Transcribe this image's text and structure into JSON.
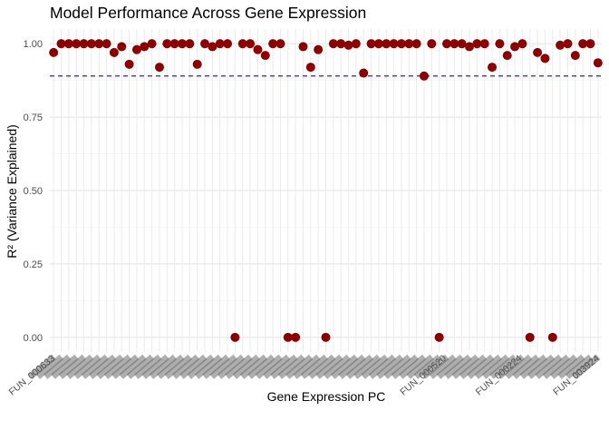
{
  "chart_data": {
    "type": "scatter",
    "title": "Model Performance Across Gene Expression",
    "xlabel": "Gene Expression PC",
    "ylabel": "R² (Variance Explained)",
    "ylim": [
      -0.05,
      1.05
    ],
    "yticks": [
      0.0,
      0.25,
      0.5,
      0.75,
      1.0
    ],
    "ytick_labels": [
      "0.00",
      "0.25",
      "0.50",
      "0.75",
      "1.00"
    ],
    "x_tick_labels_legible": [
      "FUN_000633",
      "FUN_000520",
      "FUN_000224",
      "FUN_003924"
    ],
    "reference_line": {
      "value": 0.89,
      "style": "dashed",
      "color": "#2222dd"
    },
    "marker_color": "#8b0000",
    "grid": true,
    "values": [
      0.97,
      1.0,
      1.0,
      1.0,
      1.0,
      1.0,
      1.0,
      1.0,
      0.97,
      0.99,
      0.93,
      0.98,
      0.99,
      1.0,
      0.92,
      1.0,
      1.0,
      1.0,
      1.0,
      0.93,
      1.0,
      0.99,
      1.0,
      1.0,
      0.0,
      1.0,
      1.0,
      0.98,
      0.96,
      1.0,
      1.0,
      0.0,
      0.0,
      0.99,
      0.92,
      0.98,
      0.0,
      1.0,
      1.0,
      0.995,
      1.0,
      0.9,
      1.0,
      1.0,
      1.0,
      1.0,
      1.0,
      1.0,
      1.0,
      0.89,
      1.0,
      0.0,
      1.0,
      1.0,
      1.0,
      0.99,
      1.0,
      1.0,
      0.92,
      1.0,
      0.96,
      0.99,
      1.0,
      0.0,
      0.97,
      0.95,
      0.0,
      0.995,
      1.0,
      0.96,
      1.0,
      1.0,
      0.935
    ]
  }
}
